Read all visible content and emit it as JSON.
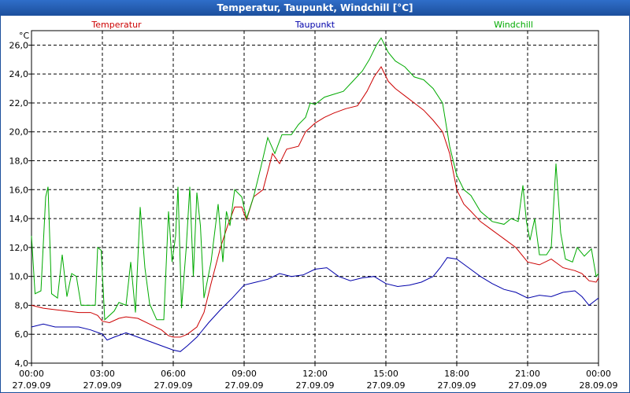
{
  "window": {
    "title": "Temperatur, Taupunkt, Windchill [°C]"
  },
  "colors": {
    "titlebar": "#1c4f9c",
    "grid": "#000000",
    "temperatur": "#cc0000",
    "taupunkt": "#0000aa",
    "windchill": "#00aa00"
  },
  "chart_data": {
    "type": "line",
    "title": "Temperatur, Taupunkt, Windchill [°C]",
    "ylabel": "°C",
    "xlabel": "",
    "xlim": [
      0,
      24
    ],
    "ylim": [
      4,
      27
    ],
    "grid": true,
    "legend_position": "top",
    "x_ticks": [
      {
        "x": 0,
        "time": "00:00",
        "date": "27.09.09"
      },
      {
        "x": 3,
        "time": "03:00",
        "date": "27.09.09"
      },
      {
        "x": 6,
        "time": "06:00",
        "date": "27.09.09"
      },
      {
        "x": 9,
        "time": "09:00",
        "date": "27.09.09"
      },
      {
        "x": 12,
        "time": "12:00",
        "date": "27.09.09"
      },
      {
        "x": 15,
        "time": "15:00",
        "date": "27.09.09"
      },
      {
        "x": 18,
        "time": "18:00",
        "date": "27.09.09"
      },
      {
        "x": 21,
        "time": "21:00",
        "date": "27.09.09"
      },
      {
        "x": 24,
        "time": "00:00",
        "date": "28.09.09"
      }
    ],
    "y_ticks": [
      "4,0",
      "6,0",
      "8,0",
      "10,0",
      "12,0",
      "14,0",
      "16,0",
      "18,0",
      "20,0",
      "22,0",
      "24,0",
      "26,0"
    ],
    "y_tick_values": [
      4,
      6,
      8,
      10,
      12,
      14,
      16,
      18,
      20,
      22,
      24,
      26
    ],
    "series": [
      {
        "name": "Temperatur",
        "color": "#cc0000",
        "points": [
          [
            0,
            8.0
          ],
          [
            0.5,
            7.8
          ],
          [
            1,
            7.7
          ],
          [
            1.5,
            7.6
          ],
          [
            2,
            7.5
          ],
          [
            2.5,
            7.5
          ],
          [
            2.8,
            7.3
          ],
          [
            3,
            6.9
          ],
          [
            3.3,
            6.8
          ],
          [
            3.7,
            7.1
          ],
          [
            4,
            7.2
          ],
          [
            4.5,
            7.1
          ],
          [
            5,
            6.7
          ],
          [
            5.5,
            6.3
          ],
          [
            5.8,
            5.9
          ],
          [
            6,
            5.8
          ],
          [
            6.3,
            5.8
          ],
          [
            6.6,
            6.0
          ],
          [
            7,
            6.5
          ],
          [
            7.3,
            7.5
          ],
          [
            7.6,
            9.5
          ],
          [
            8,
            12.0
          ],
          [
            8.3,
            13.5
          ],
          [
            8.6,
            14.8
          ],
          [
            8.9,
            14.8
          ],
          [
            9.1,
            13.9
          ],
          [
            9.4,
            15.5
          ],
          [
            9.8,
            16.0
          ],
          [
            10.2,
            18.5
          ],
          [
            10.5,
            17.8
          ],
          [
            10.8,
            18.8
          ],
          [
            11.3,
            19.0
          ],
          [
            11.6,
            20.0
          ],
          [
            12,
            20.6
          ],
          [
            12.4,
            21.0
          ],
          [
            12.8,
            21.3
          ],
          [
            13.3,
            21.6
          ],
          [
            13.8,
            21.8
          ],
          [
            14.2,
            22.8
          ],
          [
            14.5,
            23.8
          ],
          [
            14.8,
            24.5
          ],
          [
            15.1,
            23.5
          ],
          [
            15.4,
            23.0
          ],
          [
            15.8,
            22.5
          ],
          [
            16.2,
            22.0
          ],
          [
            16.6,
            21.5
          ],
          [
            17,
            20.8
          ],
          [
            17.4,
            20.0
          ],
          [
            17.7,
            18.5
          ],
          [
            18,
            16.0
          ],
          [
            18.3,
            15.0
          ],
          [
            18.6,
            14.5
          ],
          [
            19,
            13.8
          ],
          [
            19.5,
            13.2
          ],
          [
            20,
            12.6
          ],
          [
            20.5,
            12.0
          ],
          [
            21,
            11.0
          ],
          [
            21.5,
            10.8
          ],
          [
            22,
            11.2
          ],
          [
            22.5,
            10.6
          ],
          [
            23,
            10.4
          ],
          [
            23.3,
            10.2
          ],
          [
            23.6,
            9.7
          ],
          [
            23.9,
            9.6
          ],
          [
            24,
            9.9
          ]
        ]
      },
      {
        "name": "Taupunkt",
        "color": "#0000aa",
        "points": [
          [
            0,
            6.5
          ],
          [
            0.5,
            6.7
          ],
          [
            1,
            6.5
          ],
          [
            1.5,
            6.5
          ],
          [
            2,
            6.5
          ],
          [
            2.5,
            6.3
          ],
          [
            3,
            6.0
          ],
          [
            3.2,
            5.6
          ],
          [
            3.5,
            5.8
          ],
          [
            4,
            6.1
          ],
          [
            4.5,
            5.8
          ],
          [
            5,
            5.5
          ],
          [
            5.5,
            5.2
          ],
          [
            6,
            4.9
          ],
          [
            6.3,
            4.8
          ],
          [
            6.6,
            5.2
          ],
          [
            7,
            5.8
          ],
          [
            7.5,
            6.8
          ],
          [
            8,
            7.7
          ],
          [
            8.5,
            8.5
          ],
          [
            9,
            9.4
          ],
          [
            9.5,
            9.6
          ],
          [
            10,
            9.8
          ],
          [
            10.5,
            10.2
          ],
          [
            11,
            10.0
          ],
          [
            11.5,
            10.1
          ],
          [
            12,
            10.5
          ],
          [
            12.5,
            10.6
          ],
          [
            13,
            10.0
          ],
          [
            13.5,
            9.7
          ],
          [
            14,
            9.9
          ],
          [
            14.5,
            10.0
          ],
          [
            15,
            9.5
          ],
          [
            15.5,
            9.3
          ],
          [
            16,
            9.4
          ],
          [
            16.5,
            9.6
          ],
          [
            17,
            10.0
          ],
          [
            17.3,
            10.6
          ],
          [
            17.6,
            11.3
          ],
          [
            18,
            11.2
          ],
          [
            18.5,
            10.6
          ],
          [
            19,
            10.0
          ],
          [
            19.5,
            9.5
          ],
          [
            20,
            9.1
          ],
          [
            20.5,
            8.9
          ],
          [
            21,
            8.5
          ],
          [
            21.5,
            8.7
          ],
          [
            22,
            8.6
          ],
          [
            22.5,
            8.9
          ],
          [
            23,
            9.0
          ],
          [
            23.3,
            8.6
          ],
          [
            23.6,
            8.0
          ],
          [
            24,
            8.5
          ]
        ]
      },
      {
        "name": "Windchill",
        "color": "#00aa00",
        "points": [
          [
            0,
            12.8
          ],
          [
            0.15,
            8.8
          ],
          [
            0.4,
            9.0
          ],
          [
            0.6,
            15.5
          ],
          [
            0.7,
            16.2
          ],
          [
            0.85,
            8.8
          ],
          [
            1.1,
            8.5
          ],
          [
            1.3,
            11.5
          ],
          [
            1.5,
            8.6
          ],
          [
            1.7,
            10.2
          ],
          [
            1.9,
            10.0
          ],
          [
            2.1,
            8.0
          ],
          [
            2.5,
            8.0
          ],
          [
            2.7,
            8.0
          ],
          [
            2.8,
            12.0
          ],
          [
            2.95,
            11.8
          ],
          [
            3.1,
            7.0
          ],
          [
            3.5,
            7.6
          ],
          [
            3.7,
            8.2
          ],
          [
            4,
            8.0
          ],
          [
            4.2,
            11.0
          ],
          [
            4.4,
            7.5
          ],
          [
            4.6,
            14.8
          ],
          [
            4.8,
            10.6
          ],
          [
            5,
            8.1
          ],
          [
            5.3,
            7.0
          ],
          [
            5.6,
            7.0
          ],
          [
            5.8,
            14.5
          ],
          [
            5.95,
            11.0
          ],
          [
            6.1,
            12.8
          ],
          [
            6.2,
            16.2
          ],
          [
            6.35,
            7.8
          ],
          [
            6.55,
            12.0
          ],
          [
            6.7,
            16.2
          ],
          [
            6.85,
            10.0
          ],
          [
            7.0,
            15.8
          ],
          [
            7.15,
            13.5
          ],
          [
            7.3,
            8.5
          ],
          [
            7.6,
            11.0
          ],
          [
            7.9,
            15.0
          ],
          [
            8.1,
            11.0
          ],
          [
            8.25,
            14.5
          ],
          [
            8.4,
            13.5
          ],
          [
            8.6,
            16.0
          ],
          [
            8.9,
            15.5
          ],
          [
            9.1,
            14.0
          ],
          [
            9.4,
            15.5
          ],
          [
            9.7,
            17.5
          ],
          [
            10.0,
            19.6
          ],
          [
            10.3,
            18.5
          ],
          [
            10.6,
            19.8
          ],
          [
            11.0,
            19.8
          ],
          [
            11.3,
            20.5
          ],
          [
            11.6,
            21.0
          ],
          [
            11.8,
            22.0
          ],
          [
            12,
            21.9
          ],
          [
            12.4,
            22.4
          ],
          [
            12.8,
            22.6
          ],
          [
            13.2,
            22.8
          ],
          [
            13.6,
            23.5
          ],
          [
            14,
            24.2
          ],
          [
            14.3,
            25.0
          ],
          [
            14.6,
            26.0
          ],
          [
            14.8,
            26.5
          ],
          [
            15.1,
            25.5
          ],
          [
            15.4,
            24.9
          ],
          [
            15.8,
            24.5
          ],
          [
            16.2,
            23.8
          ],
          [
            16.6,
            23.6
          ],
          [
            17,
            23.0
          ],
          [
            17.4,
            22.0
          ],
          [
            17.7,
            19.0
          ],
          [
            18,
            17.0
          ],
          [
            18.3,
            16.0
          ],
          [
            18.6,
            15.6
          ],
          [
            19,
            14.5
          ],
          [
            19.5,
            13.8
          ],
          [
            20,
            13.6
          ],
          [
            20.3,
            14.0
          ],
          [
            20.6,
            13.8
          ],
          [
            20.8,
            16.3
          ],
          [
            20.95,
            13.8
          ],
          [
            21.1,
            12.5
          ],
          [
            21.3,
            14.0
          ],
          [
            21.5,
            11.5
          ],
          [
            21.8,
            11.5
          ],
          [
            22,
            12.0
          ],
          [
            22.2,
            17.8
          ],
          [
            22.4,
            13.0
          ],
          [
            22.6,
            11.2
          ],
          [
            22.9,
            11.0
          ],
          [
            23.1,
            12.0
          ],
          [
            23.4,
            11.4
          ],
          [
            23.7,
            11.9
          ],
          [
            23.9,
            10.0
          ],
          [
            24,
            10.2
          ]
        ]
      }
    ]
  }
}
